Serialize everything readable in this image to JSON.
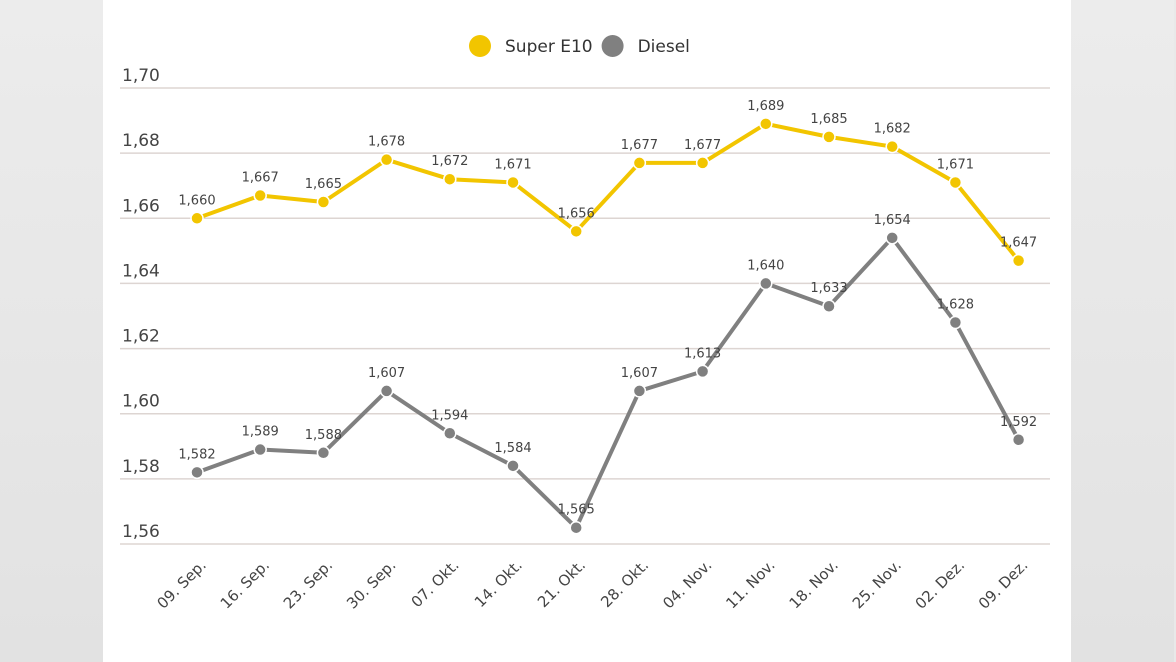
{
  "chart_data": {
    "type": "line",
    "title": "",
    "xlabel": "",
    "ylabel": "",
    "categories": [
      "09. Sep.",
      "16. Sep.",
      "23. Sep.",
      "30. Sep.",
      "07. Okt.",
      "14. Okt.",
      "21. Okt.",
      "28. Okt.",
      "04. Nov.",
      "11. Nov.",
      "18. Nov.",
      "25. Nov.",
      "02. Dez.",
      "09. Dez."
    ],
    "ylim": [
      1.56,
      1.7
    ],
    "yticks": [
      "1,56",
      "1,58",
      "1,60",
      "1,62",
      "1,64",
      "1,66",
      "1,68",
      "1,70"
    ],
    "ytick_values": [
      1.56,
      1.58,
      1.6,
      1.62,
      1.64,
      1.66,
      1.68,
      1.7
    ],
    "grid": true,
    "legend_position": "top-center",
    "series": [
      {
        "name": "Super E10",
        "color": "#f2c500",
        "values": [
          1.66,
          1.667,
          1.665,
          1.678,
          1.672,
          1.671,
          1.656,
          1.677,
          1.677,
          1.689,
          1.685,
          1.682,
          1.671,
          1.647
        ],
        "labels": [
          "1,660",
          "1,667",
          "1,665",
          "1,678",
          "1,672",
          "1,671",
          "1,656",
          "1,677",
          "1,677",
          "1,689",
          "1,685",
          "1,682",
          "1,671",
          "1,647"
        ]
      },
      {
        "name": "Diesel",
        "color": "#808080",
        "values": [
          1.582,
          1.589,
          1.588,
          1.607,
          1.594,
          1.584,
          1.565,
          1.607,
          1.613,
          1.64,
          1.633,
          1.654,
          1.628,
          1.592
        ],
        "labels": [
          "1,582",
          "1,589",
          "1,588",
          "1,607",
          "1,594",
          "1,584",
          "1,565",
          "1,607",
          "1,613",
          "1,640",
          "1,633",
          "1,654",
          "1,628",
          "1,592"
        ]
      }
    ]
  }
}
